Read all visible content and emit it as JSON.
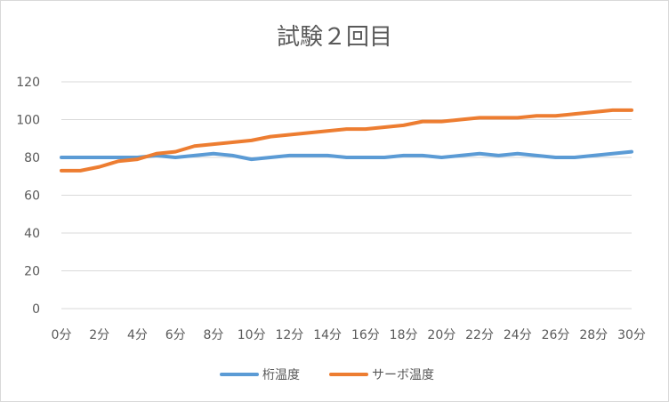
{
  "chart_data": {
    "type": "line",
    "title": "試験２回目",
    "xlabel": "",
    "ylabel": "",
    "categories": [
      "0分",
      "2分",
      "4分",
      "6分",
      "8分",
      "10分",
      "12分",
      "14分",
      "16分",
      "18分",
      "20分",
      "22分",
      "24分",
      "26分",
      "28分",
      "30分"
    ],
    "x": [
      0,
      1,
      2,
      3,
      4,
      5,
      6,
      7,
      8,
      9,
      10,
      11,
      12,
      13,
      14,
      15,
      16,
      17,
      18,
      19,
      20,
      21,
      22,
      23,
      24,
      25,
      26,
      27,
      28,
      29,
      30
    ],
    "ylim": [
      0,
      120
    ],
    "yticks": [
      0,
      20,
      40,
      60,
      80,
      100,
      120
    ],
    "grid": true,
    "legend_position": "bottom",
    "series": [
      {
        "name": "桁温度",
        "color": "#5b9bd5",
        "values": [
          80,
          80,
          80,
          80,
          80,
          81,
          80,
          81,
          82,
          81,
          79,
          80,
          81,
          81,
          81,
          80,
          80,
          80,
          81,
          81,
          80,
          81,
          82,
          81,
          82,
          81,
          80,
          80,
          81,
          82,
          83
        ]
      },
      {
        "name": "サーボ温度",
        "color": "#ed7d31",
        "values": [
          73,
          73,
          75,
          78,
          79,
          82,
          83,
          86,
          87,
          88,
          89,
          91,
          92,
          93,
          94,
          95,
          95,
          96,
          97,
          99,
          99,
          100,
          101,
          101,
          101,
          102,
          102,
          103,
          104,
          105,
          105
        ]
      }
    ]
  }
}
